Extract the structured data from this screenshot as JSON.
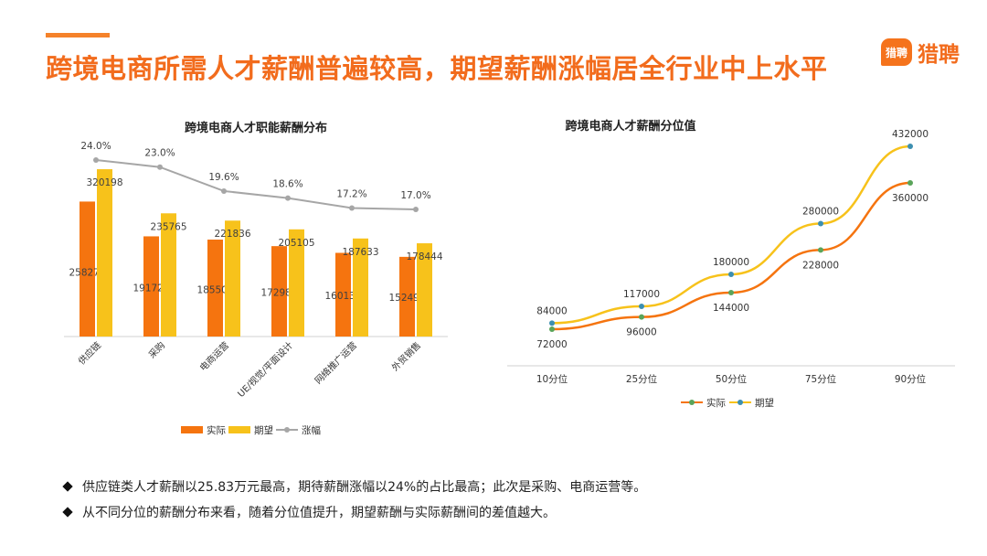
{
  "header": {
    "title": "跨境电商所需人才薪酬普遍较高，期望薪酬涨幅居全行业中上水平",
    "logo_badge": "猎聘",
    "logo_text": "猎聘"
  },
  "colors": {
    "actual": "#f5740f",
    "expected": "#f7c21b",
    "growth": "#a6a6a6",
    "title": "#f26c1d"
  },
  "chart_data": [
    {
      "type": "bar",
      "title": "跨境电商人才职能薪酬分布",
      "categories": [
        "供应链",
        "采购",
        "电商运营",
        "UE/视觉/平面设计",
        "网络推广运营",
        "外贸销售"
      ],
      "series": [
        {
          "name": "实际",
          "values": [
            258278,
            191726,
            185502,
            172981,
            160137,
            152490
          ]
        },
        {
          "name": "期望",
          "values": [
            320198,
            235765,
            221836,
            205105,
            187633,
            178444
          ]
        }
      ],
      "line_series": {
        "name": "涨幅",
        "values": [
          0.24,
          0.23,
          0.196,
          0.186,
          0.172,
          0.17
        ],
        "labels": [
          "24.0%",
          "23.0%",
          "19.6%",
          "18.6%",
          "17.2%",
          "17.0%"
        ]
      },
      "ylim": [
        0,
        350000
      ],
      "legend": [
        "实际",
        "期望",
        "涨幅"
      ]
    },
    {
      "type": "line",
      "title": "跨境电商人才薪酬分位值",
      "categories": [
        "10分位",
        "25分位",
        "50分位",
        "75分位",
        "90分位"
      ],
      "series": [
        {
          "name": "实际",
          "values": [
            72000,
            96000,
            144000,
            228000,
            360000
          ]
        },
        {
          "name": "期望",
          "values": [
            84000,
            117000,
            180000,
            280000,
            432000
          ]
        }
      ],
      "ylim": [
        0,
        450000
      ],
      "legend": [
        "实际",
        "期望"
      ]
    }
  ],
  "bullets": [
    "供应链类人才薪酬以25.83万元最高，期待薪酬涨幅以24%的占比最高；此次是采购、电商运营等。",
    "从不同分位的薪酬分布来看，随着分位值提升，期望薪酬与实际薪酬间的差值越大。"
  ]
}
